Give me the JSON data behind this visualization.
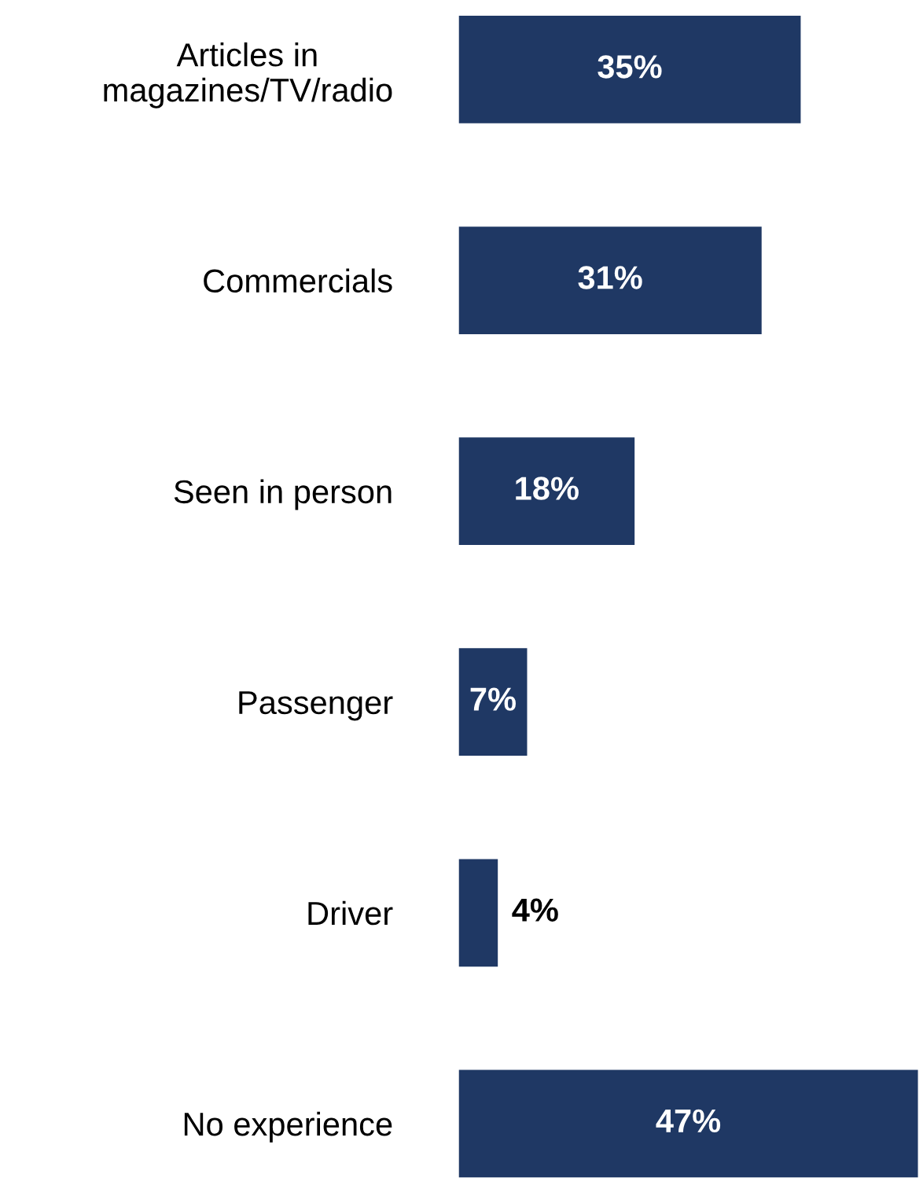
{
  "chart_data": {
    "type": "bar",
    "orientation": "horizontal",
    "categories": [
      "Articles in\nmagazines/TV/radio",
      "Commercials",
      "Seen in person",
      "Passenger",
      "Driver",
      "No experience"
    ],
    "values": [
      35,
      31,
      18,
      7,
      4,
      47
    ],
    "value_labels": [
      "35%",
      "31%",
      "18%",
      "7%",
      "4%",
      "47%"
    ],
    "color": "#1f3864",
    "grid": false,
    "legend": false,
    "tick_labels": "y"
  }
}
